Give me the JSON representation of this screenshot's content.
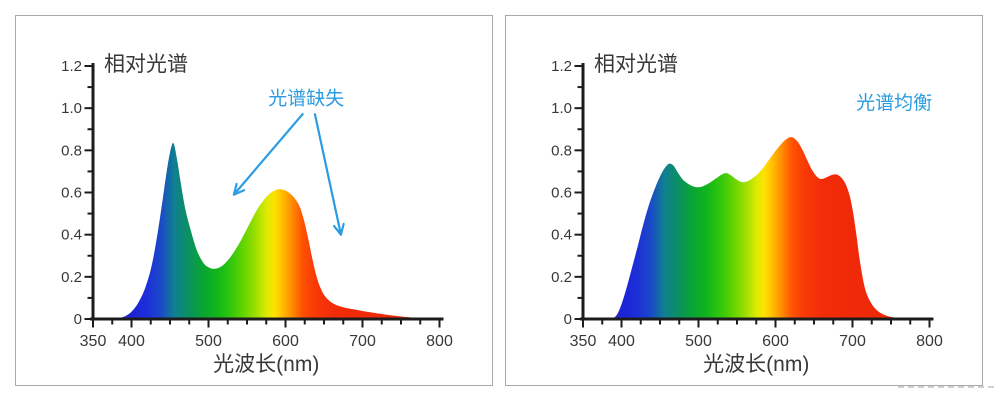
{
  "page": {
    "background": "#ffffff",
    "panel_border_color": "#a9a9a9",
    "text_color": "#383838",
    "axis_color": "#1c1c1c",
    "annotation_color": "#2b9ce2"
  },
  "spectrum_gradient": [
    {
      "wl": 385,
      "color": "#3030bf"
    },
    {
      "wl": 400,
      "color": "#1b23d6"
    },
    {
      "wl": 420,
      "color": "#1d2fd8"
    },
    {
      "wl": 438,
      "color": "#1a49c8"
    },
    {
      "wl": 455,
      "color": "#107e92"
    },
    {
      "wl": 472,
      "color": "#0b8f66"
    },
    {
      "wl": 490,
      "color": "#09a238"
    },
    {
      "wl": 510,
      "color": "#10b51c"
    },
    {
      "wl": 528,
      "color": "#2fc70e"
    },
    {
      "wl": 546,
      "color": "#66d400"
    },
    {
      "wl": 562,
      "color": "#9fe000"
    },
    {
      "wl": 575,
      "color": "#dcea00"
    },
    {
      "wl": 585,
      "color": "#fde200"
    },
    {
      "wl": 593,
      "color": "#ffc900"
    },
    {
      "wl": 602,
      "color": "#ffa500"
    },
    {
      "wl": 612,
      "color": "#ff7d00"
    },
    {
      "wl": 622,
      "color": "#ff5203"
    },
    {
      "wl": 638,
      "color": "#f93a06"
    },
    {
      "wl": 660,
      "color": "#f22c08"
    },
    {
      "wl": 800,
      "color": "#ec2407"
    }
  ],
  "chart_data": [
    {
      "type": "area",
      "title": "相对光谱",
      "xlabel": "光波长(nm)",
      "xlim": [
        350,
        800
      ],
      "ylim": [
        0,
        1.2
      ],
      "x_major_ticks": [
        350,
        400,
        500,
        600,
        700,
        800
      ],
      "x_minor_step": 25,
      "y_major_step": 0.2,
      "y_minor_step": 0.1,
      "y_tick_labels": [
        "0",
        "0.2",
        "0.4",
        "0.6",
        "0.8",
        "1.0",
        "1.2"
      ],
      "annotation": {
        "text": "光谱缺失",
        "x": 627,
        "y": 1.05,
        "arrows": [
          {
            "from": [
              623,
              0.975
            ],
            "to": [
              533,
              0.59
            ]
          },
          {
            "from": [
              638,
              0.975
            ],
            "to": [
              672,
              0.4
            ]
          }
        ]
      },
      "points": [
        [
          380,
          0
        ],
        [
          388,
          0.008
        ],
        [
          395,
          0.02
        ],
        [
          402,
          0.042
        ],
        [
          410,
          0.085
        ],
        [
          418,
          0.15
        ],
        [
          426,
          0.25
        ],
        [
          434,
          0.41
        ],
        [
          441,
          0.58
        ],
        [
          447,
          0.73
        ],
        [
          452,
          0.82
        ],
        [
          455,
          0.83
        ],
        [
          459,
          0.76
        ],
        [
          464,
          0.645
        ],
        [
          470,
          0.52
        ],
        [
          477,
          0.42
        ],
        [
          485,
          0.325
        ],
        [
          493,
          0.268
        ],
        [
          500,
          0.245
        ],
        [
          507,
          0.238
        ],
        [
          515,
          0.246
        ],
        [
          523,
          0.27
        ],
        [
          532,
          0.312
        ],
        [
          542,
          0.372
        ],
        [
          552,
          0.442
        ],
        [
          562,
          0.512
        ],
        [
          572,
          0.565
        ],
        [
          580,
          0.596
        ],
        [
          588,
          0.613
        ],
        [
          595,
          0.615
        ],
        [
          602,
          0.605
        ],
        [
          608,
          0.588
        ],
        [
          614,
          0.562
        ],
        [
          619,
          0.528
        ],
        [
          624,
          0.468
        ],
        [
          629,
          0.39
        ],
        [
          634,
          0.3
        ],
        [
          639,
          0.22
        ],
        [
          644,
          0.16
        ],
        [
          650,
          0.115
        ],
        [
          657,
          0.086
        ],
        [
          665,
          0.068
        ],
        [
          675,
          0.056
        ],
        [
          688,
          0.046
        ],
        [
          700,
          0.038
        ],
        [
          715,
          0.029
        ],
        [
          730,
          0.021
        ],
        [
          745,
          0.014
        ],
        [
          760,
          0.008
        ],
        [
          775,
          0.004
        ],
        [
          790,
          0.001
        ],
        [
          800,
          0
        ]
      ]
    },
    {
      "type": "area",
      "title": "相对光谱",
      "xlabel": "光波长(nm)",
      "xlim": [
        350,
        800
      ],
      "ylim": [
        0,
        1.2
      ],
      "x_major_ticks": [
        350,
        400,
        500,
        600,
        700,
        800
      ],
      "x_minor_step": 25,
      "y_major_step": 0.2,
      "y_minor_step": 0.1,
      "y_tick_labels": [
        "0",
        "0.2",
        "0.4",
        "0.6",
        "0.8",
        "1.0",
        "1.2"
      ],
      "annotation": {
        "text": "光谱均衡",
        "x": 754,
        "y": 1.03,
        "arrows": []
      },
      "points": [
        [
          388,
          0
        ],
        [
          394,
          0.02
        ],
        [
          400,
          0.07
        ],
        [
          406,
          0.14
        ],
        [
          412,
          0.22
        ],
        [
          420,
          0.33
        ],
        [
          428,
          0.445
        ],
        [
          436,
          0.545
        ],
        [
          444,
          0.625
        ],
        [
          452,
          0.69
        ],
        [
          458,
          0.725
        ],
        [
          463,
          0.737
        ],
        [
          468,
          0.725
        ],
        [
          474,
          0.69
        ],
        [
          480,
          0.66
        ],
        [
          487,
          0.64
        ],
        [
          494,
          0.628
        ],
        [
          501,
          0.625
        ],
        [
          508,
          0.633
        ],
        [
          516,
          0.65
        ],
        [
          524,
          0.67
        ],
        [
          531,
          0.687
        ],
        [
          536,
          0.692
        ],
        [
          541,
          0.684
        ],
        [
          547,
          0.668
        ],
        [
          553,
          0.654
        ],
        [
          558,
          0.649
        ],
        [
          564,
          0.654
        ],
        [
          571,
          0.67
        ],
        [
          578,
          0.692
        ],
        [
          585,
          0.722
        ],
        [
          592,
          0.757
        ],
        [
          599,
          0.792
        ],
        [
          606,
          0.824
        ],
        [
          613,
          0.85
        ],
        [
          619,
          0.862
        ],
        [
          624,
          0.858
        ],
        [
          630,
          0.835
        ],
        [
          636,
          0.795
        ],
        [
          642,
          0.747
        ],
        [
          648,
          0.703
        ],
        [
          654,
          0.674
        ],
        [
          659,
          0.664
        ],
        [
          665,
          0.67
        ],
        [
          671,
          0.68
        ],
        [
          677,
          0.686
        ],
        [
          682,
          0.681
        ],
        [
          687,
          0.664
        ],
        [
          692,
          0.632
        ],
        [
          697,
          0.576
        ],
        [
          701,
          0.5
        ],
        [
          705,
          0.4
        ],
        [
          709,
          0.29
        ],
        [
          713,
          0.2
        ],
        [
          717,
          0.135
        ],
        [
          722,
          0.09
        ],
        [
          728,
          0.055
        ],
        [
          735,
          0.032
        ],
        [
          743,
          0.017
        ],
        [
          752,
          0.008
        ],
        [
          762,
          0.003
        ],
        [
          772,
          0
        ]
      ]
    }
  ]
}
